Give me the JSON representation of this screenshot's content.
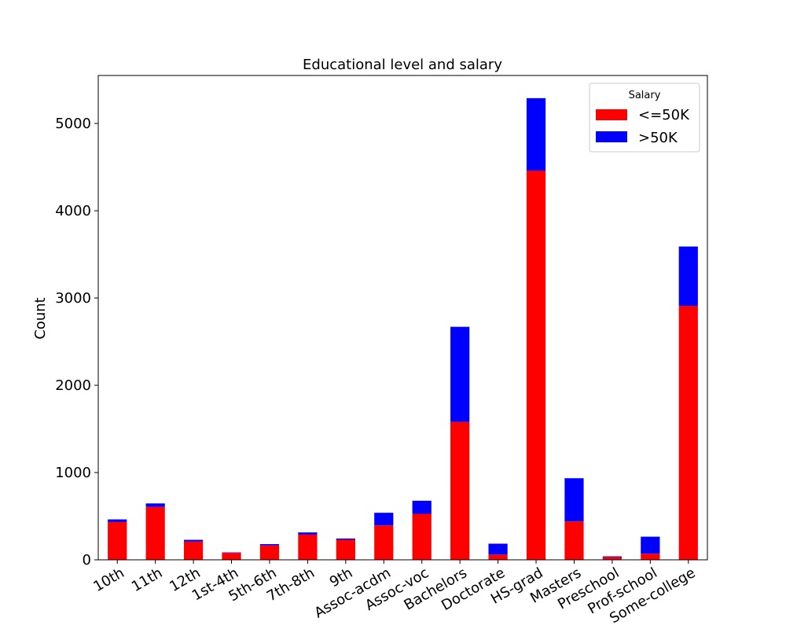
{
  "chart_data": {
    "type": "bar",
    "stacked": true,
    "title": "Educational level and salary",
    "xlabel": "",
    "ylabel": "Count",
    "ylim": [
      0,
      5550
    ],
    "yticks": [
      0,
      1000,
      2000,
      3000,
      4000,
      5000
    ],
    "ytick_labels": [
      "0",
      "1000",
      "2000",
      "3000",
      "4000",
      "5000"
    ],
    "grid": false,
    "categories": [
      "10th",
      "11th",
      "12th",
      "1st-4th",
      "5th-6th",
      "7th-8th",
      "9th",
      "Assoc-acdm",
      "Assoc-voc",
      "Bachelors",
      "Doctorate",
      "HS-grad",
      "Masters",
      "Preschool",
      "Prof-school",
      "Some-college"
    ],
    "series": [
      {
        "name": "<=50K",
        "color": "#ff0000",
        "values": [
          433,
          606,
          209,
          80,
          165,
          289,
          229,
          394,
          527,
          1580,
          60,
          4460,
          440,
          32,
          70,
          2910
        ]
      },
      {
        "name": ">50K",
        "color": "#0000ff",
        "values": [
          30,
          40,
          20,
          5,
          15,
          25,
          15,
          145,
          150,
          1090,
          125,
          830,
          495,
          8,
          195,
          680
        ]
      }
    ],
    "legend": {
      "title": "Salary",
      "position": "top-right"
    }
  }
}
